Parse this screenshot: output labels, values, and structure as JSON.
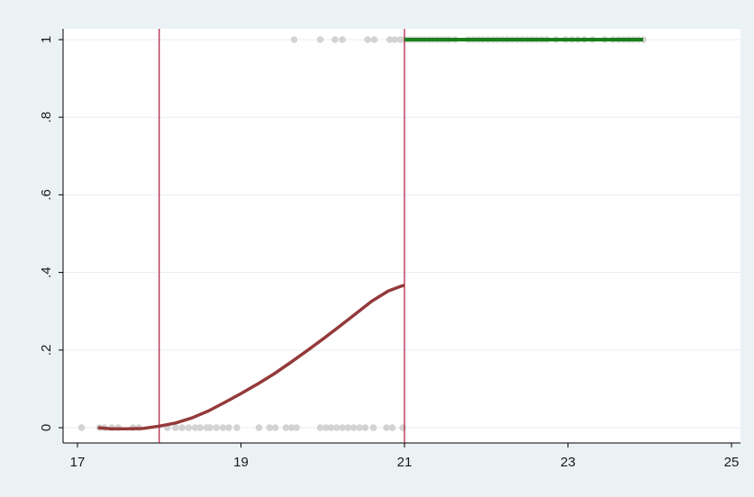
{
  "chart_data": {
    "type": "scatter",
    "title": "",
    "xlabel": "",
    "ylabel": "",
    "xlim": [
      17,
      25
    ],
    "ylim": [
      0,
      1
    ],
    "x_ticks": [
      17,
      19,
      21,
      23,
      25
    ],
    "x_tick_labels": [
      "17",
      "19",
      "21",
      "23",
      "25"
    ],
    "y_ticks": [
      0,
      0.2,
      0.4,
      0.6,
      0.8,
      1
    ],
    "y_tick_labels": [
      "0",
      ".2",
      ".4",
      ".6",
      ".8",
      "1"
    ],
    "grid": "horizontal",
    "reference_lines_x": [
      18,
      21
    ],
    "colors": {
      "background": "#eaf2f3",
      "plot_background": "#ffffff",
      "grid": "#e6eef0",
      "points": "#d3d3d3",
      "fit_below": "#943a3a",
      "fit_above": "#1a7f1a",
      "reference_line": "#b0143c"
    },
    "series": [
      {
        "points": [
          [
            17.05,
            0
          ],
          [
            17.27,
            0
          ],
          [
            17.33,
            0
          ],
          [
            17.42,
            0
          ],
          [
            17.5,
            0
          ],
          [
            17.68,
            0
          ],
          [
            17.75,
            0
          ],
          [
            18.1,
            0
          ],
          [
            18.2,
            0
          ],
          [
            18.28,
            0
          ],
          [
            18.36,
            0
          ],
          [
            18.44,
            0
          ],
          [
            18.5,
            0
          ],
          [
            18.58,
            0
          ],
          [
            18.62,
            0
          ],
          [
            18.7,
            0
          ],
          [
            18.78,
            0
          ],
          [
            18.85,
            0
          ],
          [
            18.95,
            0
          ],
          [
            19.22,
            0
          ],
          [
            19.35,
            0
          ],
          [
            19.42,
            0
          ],
          [
            19.55,
            0
          ],
          [
            19.62,
            0
          ],
          [
            19.68,
            0
          ],
          [
            19.97,
            0
          ],
          [
            20.04,
            0
          ],
          [
            20.1,
            0
          ],
          [
            20.17,
            0
          ],
          [
            20.24,
            0
          ],
          [
            20.31,
            0
          ],
          [
            20.38,
            0
          ],
          [
            20.45,
            0
          ],
          [
            20.52,
            0
          ],
          [
            20.62,
            0
          ],
          [
            20.78,
            0
          ],
          [
            20.85,
            0
          ],
          [
            20.98,
            0
          ],
          [
            19.65,
            1
          ],
          [
            19.97,
            1
          ],
          [
            20.15,
            1
          ],
          [
            20.24,
            1
          ],
          [
            20.55,
            1
          ],
          [
            20.63,
            1
          ],
          [
            20.82,
            1
          ],
          [
            20.88,
            1
          ],
          [
            20.95,
            1
          ],
          [
            21.0,
            1
          ],
          [
            21.05,
            1
          ],
          [
            21.1,
            1
          ],
          [
            21.15,
            1
          ],
          [
            21.2,
            1
          ],
          [
            21.25,
            1
          ],
          [
            21.3,
            1
          ],
          [
            21.35,
            1
          ],
          [
            21.4,
            1
          ],
          [
            21.45,
            1
          ],
          [
            21.5,
            1
          ],
          [
            21.55,
            1
          ],
          [
            21.62,
            1
          ],
          [
            21.78,
            1
          ],
          [
            21.84,
            1
          ],
          [
            21.9,
            1
          ],
          [
            21.96,
            1
          ],
          [
            22.02,
            1
          ],
          [
            22.08,
            1
          ],
          [
            22.14,
            1
          ],
          [
            22.2,
            1
          ],
          [
            22.26,
            1
          ],
          [
            22.32,
            1
          ],
          [
            22.38,
            1
          ],
          [
            22.44,
            1
          ],
          [
            22.5,
            1
          ],
          [
            22.56,
            1
          ],
          [
            22.62,
            1
          ],
          [
            22.68,
            1
          ],
          [
            22.74,
            1
          ],
          [
            22.85,
            1
          ],
          [
            22.97,
            1
          ],
          [
            23.05,
            1
          ],
          [
            23.12,
            1
          ],
          [
            23.2,
            1
          ],
          [
            23.3,
            1
          ],
          [
            23.45,
            1
          ],
          [
            23.55,
            1
          ],
          [
            23.62,
            1
          ],
          [
            23.68,
            1
          ],
          [
            23.74,
            1
          ],
          [
            23.8,
            1
          ],
          [
            23.86,
            1
          ],
          [
            23.92,
            1
          ]
        ]
      },
      {
        "points": [
          [
            17.25,
            0
          ],
          [
            17.4,
            -0.003
          ],
          [
            17.6,
            -0.003
          ],
          [
            17.8,
            -0.002
          ],
          [
            18.0,
            0.004
          ],
          [
            18.2,
            0.012
          ],
          [
            18.4,
            0.025
          ],
          [
            18.6,
            0.043
          ],
          [
            18.8,
            0.065
          ],
          [
            19.0,
            0.088
          ],
          [
            19.2,
            0.112
          ],
          [
            19.4,
            0.138
          ],
          [
            19.6,
            0.167
          ],
          [
            19.8,
            0.197
          ],
          [
            20.0,
            0.228
          ],
          [
            20.2,
            0.26
          ],
          [
            20.4,
            0.293
          ],
          [
            20.6,
            0.326
          ],
          [
            20.8,
            0.352
          ],
          [
            20.95,
            0.364
          ],
          [
            21.0,
            0.367
          ]
        ]
      },
      {
        "points": [
          [
            21.0,
            1
          ],
          [
            23.92,
            1
          ]
        ]
      }
    ]
  }
}
